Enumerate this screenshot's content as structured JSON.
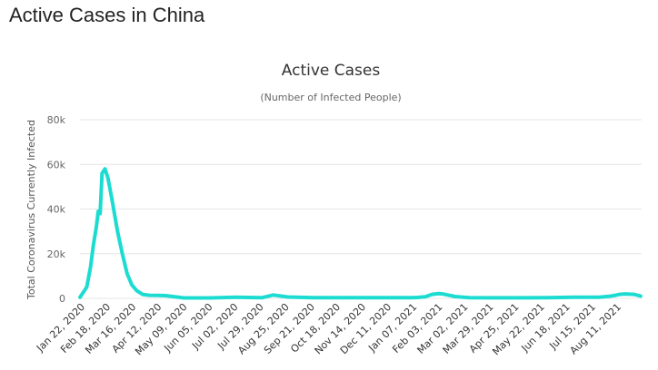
{
  "page": {
    "heading": "Active Cases in China"
  },
  "chart_data": {
    "type": "line",
    "title": "Active Cases",
    "subtitle": "(Number of Infected People)",
    "xlabel": "",
    "ylabel": "Total Coronavirus Currently Infected",
    "ylim": [
      0,
      80000
    ],
    "yticks": [
      0,
      20000,
      40000,
      60000,
      80000
    ],
    "ytick_labels": [
      "0",
      "20k",
      "40k",
      "60k",
      "80k"
    ],
    "grid": true,
    "legend": "none",
    "line_color": "#1cdcd2",
    "x_categories": [
      "Jan 22, 2020",
      "Feb 18, 2020",
      "Mar 16, 2020",
      "Apr 12, 2020",
      "May 09, 2020",
      "Jun 05, 2020",
      "Jul 02, 2020",
      "Jul 29, 2020",
      "Aug 25, 2020",
      "Sep 21, 2020",
      "Oct 18, 2020",
      "Nov 14, 2020",
      "Dec 11, 2020",
      "Jan 07, 2021",
      "Feb 03, 2021",
      "Mar 02, 2021",
      "Mar 29, 2021",
      "Apr 25, 2021",
      "May 22, 2021",
      "Jun 18, 2021",
      "Jul 15, 2021",
      "Aug 11, 2021"
    ],
    "series": [
      {
        "x": [
          "2020-01-22",
          "2020-01-29",
          "2020-02-02",
          "2020-02-05",
          "2020-02-08",
          "2020-02-10",
          "2020-02-12",
          "2020-02-14",
          "2020-02-17",
          "2020-02-20",
          "2020-02-24",
          "2020-03-01",
          "2020-03-06",
          "2020-03-11",
          "2020-03-16",
          "2020-03-21",
          "2020-03-27",
          "2020-04-03",
          "2020-04-12",
          "2020-04-20",
          "2020-05-09",
          "2020-06-05",
          "2020-07-02",
          "2020-07-29",
          "2020-08-10",
          "2020-08-25",
          "2020-09-21",
          "2020-10-18",
          "2020-11-14",
          "2020-12-11",
          "2020-12-31",
          "2021-01-07",
          "2021-01-15",
          "2021-01-22",
          "2021-01-29",
          "2021-02-03",
          "2021-02-15",
          "2021-03-02",
          "2021-03-29",
          "2021-04-25",
          "2021-05-22",
          "2021-06-18",
          "2021-07-15",
          "2021-07-25",
          "2021-08-01",
          "2021-08-05",
          "2021-08-11",
          "2021-08-20",
          "2021-08-27"
        ],
        "y": [
          500,
          5000,
          14000,
          24000,
          32000,
          39000,
          38000,
          56000,
          58000,
          54000,
          45000,
          30000,
          20000,
          11000,
          6000,
          3500,
          1800,
          1400,
          1300,
          1200,
          200,
          200,
          500,
          300,
          1500,
          600,
          300,
          300,
          300,
          300,
          300,
          400,
          700,
          1800,
          2100,
          1900,
          800,
          300,
          250,
          250,
          300,
          500,
          500,
          900,
          1400,
          1800,
          2000,
          1800,
          1000
        ]
      }
    ]
  }
}
